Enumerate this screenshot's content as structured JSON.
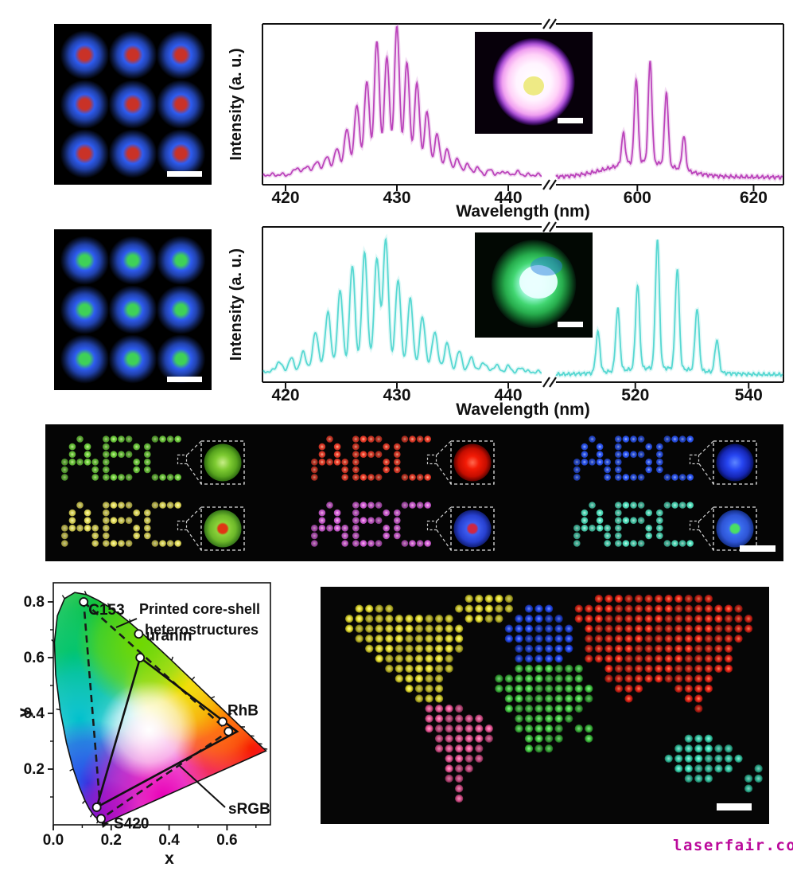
{
  "page": {
    "background": "#ffffff",
    "watermark": {
      "text": "laserfair.com",
      "color": "#bb0a9b"
    }
  },
  "microscopy": {
    "red_core_array": {
      "rows": 3,
      "cols": 3,
      "core_color": "#c93227",
      "shell_color": "#2e5cf0",
      "background": "#000000",
      "scale_bar": true
    },
    "green_core_array": {
      "rows": 3,
      "cols": 3,
      "core_color": "#3fd157",
      "shell_color": "#2e5cf0",
      "background": "#000000",
      "scale_bar": true
    }
  },
  "chart_data": {
    "spectra": [
      {
        "id": "red-emitting-core-shell",
        "type": "line",
        "line_color": "#bb44bb",
        "ylabel": "Intensity (a. u.)",
        "xlabel": "Wavelength (nm)",
        "axis_break": true,
        "inset": {
          "style": "pink-sphere",
          "scale_bar": true
        },
        "segments": [
          {
            "xlim": [
              418,
              443
            ],
            "ticks": [
              420,
              430,
              440
            ],
            "peak_width": 0.32,
            "baseline": 0.035,
            "background": {
              "center": 429.8,
              "width": 5.5,
              "height": 0.07
            },
            "peaks": [
              [
                421.0,
                0.05
              ],
              [
                421.9,
                0.06
              ],
              [
                422.8,
                0.09
              ],
              [
                423.7,
                0.12
              ],
              [
                424.6,
                0.17
              ],
              [
                425.5,
                0.3
              ],
              [
                426.4,
                0.46
              ],
              [
                427.3,
                0.62
              ],
              [
                428.2,
                0.9
              ],
              [
                429.1,
                0.78
              ],
              [
                430.0,
                1.0
              ],
              [
                430.9,
                0.74
              ],
              [
                431.8,
                0.6
              ],
              [
                432.7,
                0.4
              ],
              [
                433.6,
                0.25
              ],
              [
                434.5,
                0.15
              ],
              [
                435.4,
                0.09
              ],
              [
                436.3,
                0.06
              ],
              [
                437.2,
                0.04
              ],
              [
                438.4,
                0.03
              ],
              [
                439.6,
                0.025
              ],
              [
                440.8,
                0.02
              ]
            ]
          },
          {
            "xlim": [
              586,
              625
            ],
            "ticks": [
              600,
              620
            ],
            "peak_width": 0.45,
            "baseline": 0.02,
            "background": {
              "center": 601,
              "width": 8,
              "height": 0.11
            },
            "peaks": [
              [
                597.6,
                0.22
              ],
              [
                599.8,
                0.6
              ],
              [
                602.2,
                0.72
              ],
              [
                605.0,
                0.52
              ],
              [
                608.0,
                0.24
              ]
            ]
          }
        ]
      },
      {
        "id": "green-emitting-core-shell",
        "type": "line",
        "line_color": "#57d8d2",
        "ylabel": "Intensity (a. u.)",
        "xlabel": "Wavelength (nm)",
        "axis_break": true,
        "inset": {
          "style": "green-donut",
          "scale_bar": true
        },
        "segments": [
          {
            "xlim": [
              418,
              443
            ],
            "ticks": [
              420,
              430,
              440
            ],
            "peak_width": 0.34,
            "baseline": 0.04,
            "background": {
              "center": 428,
              "width": 6,
              "height": 0.05
            },
            "peaks": [
              [
                419.4,
                0.07
              ],
              [
                420.5,
                0.09
              ],
              [
                421.6,
                0.13
              ],
              [
                422.7,
                0.28
              ],
              [
                423.8,
                0.42
              ],
              [
                424.9,
                0.56
              ],
              [
                426.0,
                0.74
              ],
              [
                427.1,
                0.84
              ],
              [
                428.2,
                0.8
              ],
              [
                429.0,
                0.94
              ],
              [
                430.1,
                0.64
              ],
              [
                431.2,
                0.5
              ],
              [
                432.3,
                0.38
              ],
              [
                433.4,
                0.28
              ],
              [
                434.5,
                0.2
              ],
              [
                435.6,
                0.14
              ],
              [
                436.7,
                0.1
              ],
              [
                437.8,
                0.07
              ],
              [
                438.9,
                0.05
              ],
              [
                440.0,
                0.04
              ],
              [
                441.2,
                0.03
              ]
            ]
          },
          {
            "xlim": [
              506,
              546
            ],
            "ticks": [
              520,
              540
            ],
            "peak_width": 0.5,
            "baseline": 0.02,
            "background": {
              "center": 524,
              "width": 10,
              "height": 0.05
            },
            "peaks": [
              [
                513.4,
                0.3
              ],
              [
                516.9,
                0.46
              ],
              [
                520.4,
                0.62
              ],
              [
                523.9,
                0.95
              ],
              [
                527.4,
                0.74
              ],
              [
                530.9,
                0.46
              ],
              [
                534.4,
                0.24
              ]
            ]
          }
        ]
      }
    ],
    "cie": {
      "type": "scatter",
      "xlabel": "x",
      "ylabel": "y",
      "x_ticks": [
        {
          "v": 0.0,
          "label": "0.0"
        },
        {
          "v": 0.2,
          "label": "0.2"
        },
        {
          "v": 0.4,
          "label": "0.4"
        },
        {
          "v": 0.6,
          "label": "0.6"
        }
      ],
      "y_ticks": [
        {
          "v": 0.2,
          "label": "0.2"
        },
        {
          "v": 0.4,
          "label": "0.4"
        },
        {
          "v": 0.6,
          "label": "0.6"
        },
        {
          "v": 0.8,
          "label": "0.8"
        }
      ],
      "annotation": {
        "lines": [
          "Printed core-shell",
          "heterostructures"
        ]
      },
      "srgb_label": "sRGB",
      "points": [
        {
          "label": "C153",
          "x": 0.105,
          "y": 0.8
        },
        {
          "label": "uranin",
          "x": 0.295,
          "y": 0.685
        },
        {
          "label": "",
          "x": 0.3,
          "y": 0.6
        },
        {
          "label": "RhB",
          "x": 0.585,
          "y": 0.37
        },
        {
          "label": "",
          "x": 0.605,
          "y": 0.335
        },
        {
          "label": "",
          "x": 0.15,
          "y": 0.063
        },
        {
          "label": "S420",
          "x": 0.165,
          "y": 0.022
        }
      ],
      "dashed_triangle": [
        [
          0.105,
          0.8
        ],
        [
          0.605,
          0.335
        ],
        [
          0.165,
          0.022
        ]
      ],
      "solid_triangle": [
        [
          0.3,
          0.6
        ],
        [
          0.635,
          0.335
        ],
        [
          0.15,
          0.063
        ]
      ]
    }
  },
  "abc_panel": {
    "background": "#050505",
    "letters": "ABC",
    "scale_bar": true,
    "groups": [
      {
        "name": "green",
        "letter_color": "#6fcf3e",
        "letter_light": "#d8f8a8",
        "inset": "green"
      },
      {
        "name": "red",
        "letter_color": "#ef3d2a",
        "letter_light": "#ffc0a0",
        "inset": "red"
      },
      {
        "name": "blue",
        "letter_color": "#2a55f5",
        "letter_light": "#a8c0ff",
        "inset": "blue"
      },
      {
        "name": "yellow",
        "letter_color": "#e6df5c",
        "letter_light": "#ffffc8",
        "inset": "green-red-core"
      },
      {
        "name": "magenta",
        "letter_color": "#d35fd8",
        "letter_light": "#ffc8f0",
        "inset": "blue-red-core"
      },
      {
        "name": "cyan",
        "letter_color": "#4fe0bd",
        "letter_light": "#d8fff4",
        "inset": "blue-green-core"
      }
    ]
  },
  "map": {
    "background": "#060606",
    "scale_bar": true,
    "colors": {
      "Y": "#e6df2e",
      "S": "#f0599a",
      "E": "#2348f0",
      "G": "#42cc42",
      "R": "#ee2418",
      "U": "#38dcb4"
    },
    "light": {
      "Y": "#ffffa0",
      "S": "#ffaad2",
      "E": "#809cff",
      "G": "#a2f2a2",
      "R": "#ff9966",
      "U": "#b2fff2"
    },
    "rows": [
      "..............YYYYY........RRRRRRRRRRRR.....",
      "...YYYY......YYYYYY.EEE..RRRRRRRRRRRRRRRRR..",
      "..YYYYYYYYYYY.YYYY.EEEEE.RRRRRRRRRRRRRRRRRR.",
      "..YYYYYYYYYYYY....EEEEEEE.RRRRRRRRRRRRRRRRR.",
      "...YYYYYYYYYYY....EEEEEEE.RRRRRRRRRRRRRRRR..",
      "....YYYYYYYYYY.....EEEEEE.RRRRRRRRRRRRRRR...",
      ".....YYYYYYYY......EEEEE..RRRRRRRRRRRRRRR...",
      "......YYYYYYY......GGGGGGG..RRRRRRRRRRRRR...",
      ".......YYYYY.....GGGGGGGGG..RRRRRRRRRRR.....",
      "........YYYY.....GGGGGGGGGG..RRR...RRRR.....",
      ".........YYY......GGGGGGGGG...R.....RR......",
      "..........SSSS....GGGGGGGG...........R......",
      "..........SSSSSS...GGGGGG...................",
      "..........SSSSSSS..GGGGG.GG.................",
      "...........SSSSSS...GGGG..G.........UUU.....",
      "...........SSSSS....GGG............UUUUUU...",
      "............SSSS..................UUUUUUUU..",
      "............SSS....................UUUUUU..U",
      "............SS......................UUU...UU",
      ".............S............................U.",
      ".............S.............................."
    ]
  }
}
